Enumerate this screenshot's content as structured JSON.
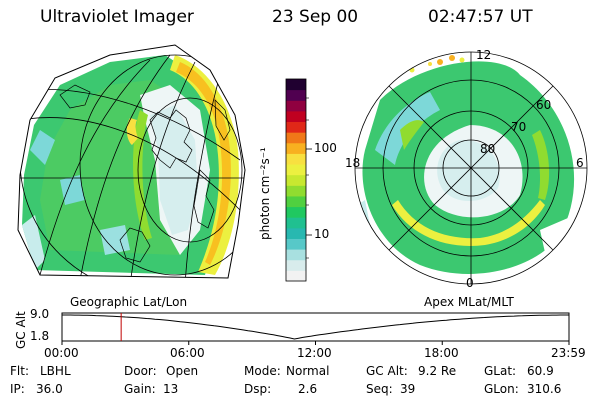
{
  "header": {
    "title": "Ultraviolet Imager",
    "date": "23 Sep 00",
    "time": "02:47:57 UT"
  },
  "colorbar": {
    "label": "photon cm⁻²s⁻¹",
    "ticks": [
      "100",
      "10"
    ],
    "colors": [
      "#f2f2f2",
      "#d8ecec",
      "#a8e0e0",
      "#57c8c8",
      "#28b8b0",
      "#20c090",
      "#20c860",
      "#50d040",
      "#90dc30",
      "#c8e830",
      "#ecf040",
      "#f8e040",
      "#f8b020",
      "#f07818",
      "#e02818",
      "#c00020",
      "#900040",
      "#500050",
      "#200030"
    ]
  },
  "maps": {
    "left_label": "Geographic Lat/Lon",
    "right_label": "Apex MLat/MLT",
    "polar": {
      "mlt_labels": [
        "12",
        "18",
        "6",
        "0"
      ],
      "lat_labels": [
        "60",
        "70",
        "80"
      ]
    }
  },
  "timeline": {
    "axis_title": "GC Alt",
    "y_ticks": [
      "9.0",
      "1.8"
    ],
    "x_ticks": [
      "00:00",
      "06:00",
      "12:00",
      "18:00",
      "23:59"
    ],
    "marker_hour": 2.8
  },
  "status": {
    "row1": [
      {
        "key": "Flt:",
        "value": "LBHL"
      },
      {
        "key": "Door:",
        "value": "Open"
      },
      {
        "key": "Mode:",
        "value": "Normal"
      },
      {
        "key": "GC Alt:",
        "value": "9.2 Re"
      },
      {
        "key": "GLat:",
        "value": "60.9"
      }
    ],
    "row2": [
      {
        "key": "IP:",
        "value": "36.0"
      },
      {
        "key": "Gain:",
        "value": "13"
      },
      {
        "key": "Dsp:",
        "value": "2.6"
      },
      {
        "key": "Seq:",
        "value": "39"
      },
      {
        "key": "GLon:",
        "value": "310.6"
      }
    ]
  }
}
